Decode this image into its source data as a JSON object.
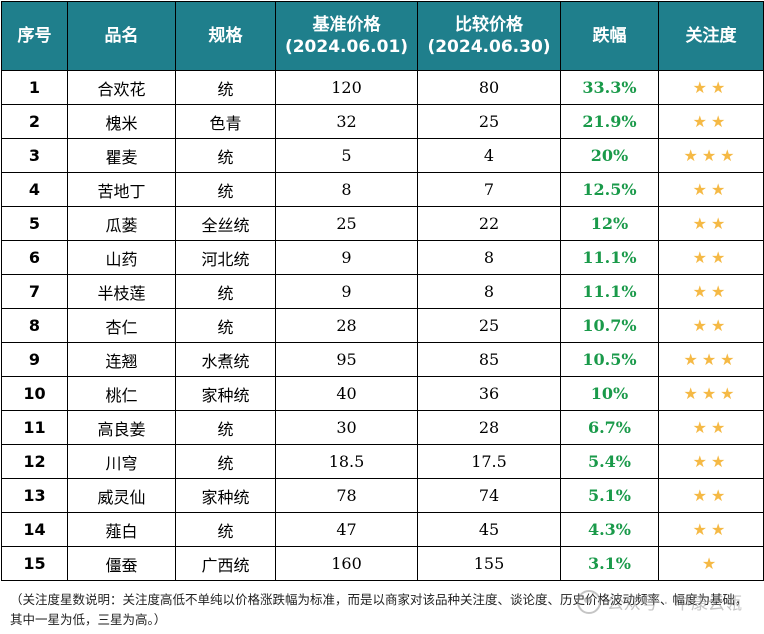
{
  "colors": {
    "header_bg": "#1f7f8c",
    "header_text": "#ffffff",
    "change_text": "#1a9a4a",
    "star": "#f5b945"
  },
  "headers": {
    "idx": "序号",
    "name": "品名",
    "spec": "规格",
    "base_l1": "基准价格",
    "base_l2": "(2024.06.01)",
    "cmp_l1": "比较价格",
    "cmp_l2": "(2024.06.30)",
    "change": "跌幅",
    "attention": "关注度"
  },
  "rows": [
    {
      "idx": "1",
      "name": "合欢花",
      "spec": "统",
      "base": "120",
      "cmp": "80",
      "change": "33.3%",
      "stars": 2,
      "stars_text": "★★"
    },
    {
      "idx": "2",
      "name": "槐米",
      "spec": "色青",
      "base": "32",
      "cmp": "25",
      "change": "21.9%",
      "stars": 2,
      "stars_text": "★★"
    },
    {
      "idx": "3",
      "name": "瞿麦",
      "spec": "统",
      "base": "5",
      "cmp": "4",
      "change": "20%",
      "stars": 3,
      "stars_text": "★★★"
    },
    {
      "idx": "4",
      "name": "苦地丁",
      "spec": "统",
      "base": "8",
      "cmp": "7",
      "change": "12.5%",
      "stars": 2,
      "stars_text": "★★"
    },
    {
      "idx": "5",
      "name": "瓜蒌",
      "spec": "全丝统",
      "base": "25",
      "cmp": "22",
      "change": "12%",
      "stars": 2,
      "stars_text": "★★"
    },
    {
      "idx": "6",
      "name": "山药",
      "spec": "河北统",
      "base": "9",
      "cmp": "8",
      "change": "11.1%",
      "stars": 2,
      "stars_text": "★★"
    },
    {
      "idx": "7",
      "name": "半枝莲",
      "spec": "统",
      "base": "9",
      "cmp": "8",
      "change": "11.1%",
      "stars": 2,
      "stars_text": "★★"
    },
    {
      "idx": "8",
      "name": "杏仁",
      "spec": "统",
      "base": "28",
      "cmp": "25",
      "change": "10.7%",
      "stars": 2,
      "stars_text": "★★"
    },
    {
      "idx": "9",
      "name": "连翘",
      "spec": "水煮统",
      "base": "95",
      "cmp": "85",
      "change": "10.5%",
      "stars": 3,
      "stars_text": "★★★"
    },
    {
      "idx": "10",
      "name": "桃仁",
      "spec": "家种统",
      "base": "40",
      "cmp": "36",
      "change": "10%",
      "stars": 3,
      "stars_text": "★★★"
    },
    {
      "idx": "11",
      "name": "高良姜",
      "spec": "统",
      "base": "30",
      "cmp": "28",
      "change": "6.7%",
      "stars": 2,
      "stars_text": "★★"
    },
    {
      "idx": "12",
      "name": "川穹",
      "spec": "统",
      "base": "18.5",
      "cmp": "17.5",
      "change": "5.4%",
      "stars": 2,
      "stars_text": "★★"
    },
    {
      "idx": "13",
      "name": "威灵仙",
      "spec": "家种统",
      "base": "78",
      "cmp": "74",
      "change": "5.1%",
      "stars": 2,
      "stars_text": "★★"
    },
    {
      "idx": "14",
      "name": "薤白",
      "spec": "统",
      "base": "47",
      "cmp": "45",
      "change": "4.3%",
      "stars": 2,
      "stars_text": "★★"
    },
    {
      "idx": "15",
      "name": "僵蚕",
      "spec": "广西统",
      "base": "160",
      "cmp": "155",
      "change": "3.1%",
      "stars": 1,
      "stars_text": "★"
    }
  ],
  "note": "（关注度星数说明：关注度高低不单纯以价格涨跌幅为标准，而是以商家对该品种关注度、谈论度、历史价格波动频率、幅度为基础，其中一星为低，三星为高。）",
  "watermark": "公众号 · 中康云瓴"
}
